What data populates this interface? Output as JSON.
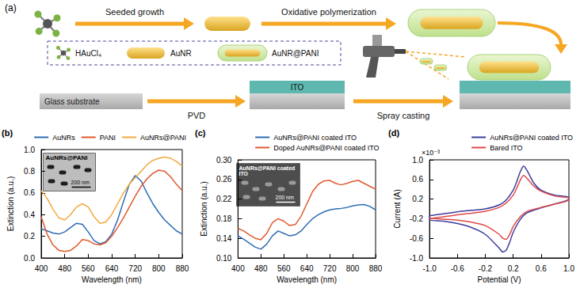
{
  "diagram": {
    "letter": "(a)",
    "steps": [
      "Seeded growth",
      "Oxidative polymerization"
    ],
    "key": [
      "HAuCl₄",
      "AuNR",
      "AuNR@PANI"
    ],
    "layers": [
      "Glass substrate",
      "ITO"
    ],
    "substrate_steps": [
      "PVD",
      "Spray casting"
    ]
  },
  "chart_data": [
    {
      "type": "line",
      "panel": "(b)",
      "x_label": "Wavelength (nm)",
      "y_label": "Extinction (a.u.)",
      "inset": {
        "label": "AuNRs@PANI",
        "scale_bar": "200 nm"
      },
      "x": [
        400,
        420,
        440,
        460,
        480,
        500,
        520,
        540,
        560,
        580,
        600,
        620,
        640,
        660,
        680,
        700,
        720,
        740,
        760,
        780,
        800,
        820,
        840,
        860,
        880
      ],
      "series": [
        {
          "name": "AuNRs",
          "color": "#2f6cb5",
          "values": [
            0.27,
            0.25,
            0.23,
            0.22,
            0.24,
            0.28,
            0.32,
            0.31,
            0.24,
            0.16,
            0.13,
            0.15,
            0.22,
            0.35,
            0.52,
            0.68,
            0.76,
            0.71,
            0.6,
            0.5,
            0.42,
            0.35,
            0.3,
            0.25,
            0.22
          ]
        },
        {
          "name": "PANI",
          "color": "#e0592b",
          "values": [
            0.38,
            0.22,
            0.12,
            0.07,
            0.06,
            0.07,
            0.11,
            0.17,
            0.16,
            0.13,
            0.12,
            0.14,
            0.2,
            0.28,
            0.37,
            0.47,
            0.57,
            0.66,
            0.73,
            0.78,
            0.81,
            0.8,
            0.75,
            0.68,
            0.62
          ]
        },
        {
          "name": "AuNRs@PANI",
          "color": "#f2a93b",
          "values": [
            0.62,
            0.55,
            0.45,
            0.37,
            0.35,
            0.4,
            0.47,
            0.5,
            0.47,
            0.38,
            0.32,
            0.33,
            0.4,
            0.5,
            0.6,
            0.68,
            0.74,
            0.8,
            0.86,
            0.9,
            0.92,
            0.93,
            0.92,
            0.89,
            0.85
          ]
        }
      ],
      "xlim": [
        400,
        880
      ],
      "xticks": [
        400,
        480,
        560,
        640,
        720,
        800,
        880
      ],
      "ylim": [
        0,
        1
      ],
      "yticks": [
        {
          "value": 0,
          "label": "0.0"
        },
        0.2,
        0.4,
        0.6,
        0.8,
        {
          "value": 1,
          "label": "1.0"
        }
      ],
      "grid": false,
      "legend": "top"
    },
    {
      "type": "line",
      "panel": "(c)",
      "x_label": "Wavelength (nm)",
      "y_label": "Extinction (a.u.)",
      "inset": {
        "label": "AuNRs@PANI coated ITO",
        "scale_bar": "200 nm"
      },
      "x": [
        400,
        420,
        440,
        460,
        480,
        500,
        520,
        540,
        560,
        580,
        600,
        620,
        640,
        660,
        680,
        700,
        720,
        740,
        760,
        780,
        800,
        820,
        840,
        860,
        880
      ],
      "series": [
        {
          "name": "AuNRs@PANI coated ITO",
          "color": "#2f6cb5",
          "values": [
            0.145,
            0.138,
            0.13,
            0.122,
            0.118,
            0.128,
            0.145,
            0.155,
            0.15,
            0.145,
            0.147,
            0.155,
            0.168,
            0.18,
            0.188,
            0.194,
            0.198,
            0.2,
            0.201,
            0.203,
            0.206,
            0.208,
            0.209,
            0.205,
            0.198
          ]
        },
        {
          "name": "Doped AuNRs@PANI coated ITO",
          "color": "#e0592b",
          "values": [
            0.16,
            0.155,
            0.147,
            0.14,
            0.137,
            0.15,
            0.172,
            0.18,
            0.175,
            0.166,
            0.168,
            0.185,
            0.21,
            0.235,
            0.25,
            0.257,
            0.258,
            0.252,
            0.249,
            0.252,
            0.256,
            0.258,
            0.252,
            0.246,
            0.24
          ]
        }
      ],
      "xlim": [
        400,
        880
      ],
      "xticks": [
        400,
        480,
        560,
        640,
        720,
        800,
        880
      ],
      "ylim": [
        0.1,
        0.3
      ],
      "yticks": [
        {
          "value": 0.1,
          "label": "0.10"
        },
        0.14,
        0.18,
        0.22,
        0.26,
        {
          "value": 0.3,
          "label": "0.30"
        }
      ],
      "grid": false,
      "legend": "top"
    },
    {
      "type": "line",
      "panel": "(d)",
      "x_label": "Potential (V)",
      "y_label": "Current (A)",
      "y_scale_label": "×10⁻³",
      "series": [
        {
          "name": "AuNRs@PANI coated ITO",
          "color": "#3c3c9c",
          "x": [
            -1.0,
            -0.8,
            -0.6,
            -0.4,
            -0.2,
            0.0,
            0.1,
            0.2,
            0.25,
            0.3,
            0.35,
            0.4,
            0.5,
            0.6,
            0.8,
            1.0,
            1.0,
            0.8,
            0.6,
            0.4,
            0.3,
            0.2,
            0.15,
            0.1,
            0.05,
            0.0,
            -0.2,
            -0.4,
            -0.6,
            -0.8,
            -1.0,
            -1.0
          ],
          "values": [
            -0.14,
            -0.1,
            -0.06,
            -0.03,
            0.0,
            0.08,
            0.18,
            0.38,
            0.55,
            0.75,
            0.87,
            0.78,
            0.52,
            0.38,
            0.28,
            0.24,
            0.2,
            0.1,
            0.02,
            -0.08,
            -0.22,
            -0.48,
            -0.68,
            -0.84,
            -0.88,
            -0.8,
            -0.52,
            -0.38,
            -0.3,
            -0.25,
            -0.22,
            -0.14
          ]
        },
        {
          "name": "Bared ITO",
          "color": "#e04848",
          "x": [
            -1.0,
            -0.8,
            -0.6,
            -0.4,
            -0.2,
            0.0,
            0.1,
            0.2,
            0.25,
            0.3,
            0.35,
            0.4,
            0.5,
            0.6,
            0.8,
            1.0,
            1.0,
            0.8,
            0.6,
            0.4,
            0.3,
            0.2,
            0.15,
            0.1,
            0.05,
            0.0,
            -0.2,
            -0.4,
            -0.6,
            -0.8,
            -1.0,
            -1.0
          ],
          "values": [
            -0.2,
            -0.16,
            -0.12,
            -0.09,
            -0.05,
            0.03,
            0.12,
            0.28,
            0.42,
            0.58,
            0.68,
            0.62,
            0.46,
            0.36,
            0.26,
            0.22,
            0.18,
            0.1,
            0.03,
            -0.05,
            -0.16,
            -0.36,
            -0.52,
            -0.62,
            -0.6,
            -0.52,
            -0.34,
            -0.27,
            -0.23,
            -0.21,
            -0.19,
            -0.2
          ]
        }
      ],
      "xlim": [
        -1,
        1
      ],
      "xticks": [
        {
          "value": -1,
          "label": "-1.0"
        },
        -0.6,
        -0.2,
        0.2,
        0.6,
        {
          "value": 1,
          "label": "1.0"
        }
      ],
      "ylim": [
        -1,
        1
      ],
      "yticks": [
        {
          "value": -1,
          "label": "-1.0"
        },
        -0.6,
        -0.2,
        0.2,
        0.6,
        {
          "value": 1,
          "label": "1.0"
        }
      ],
      "grid": false,
      "legend": "top"
    }
  ]
}
